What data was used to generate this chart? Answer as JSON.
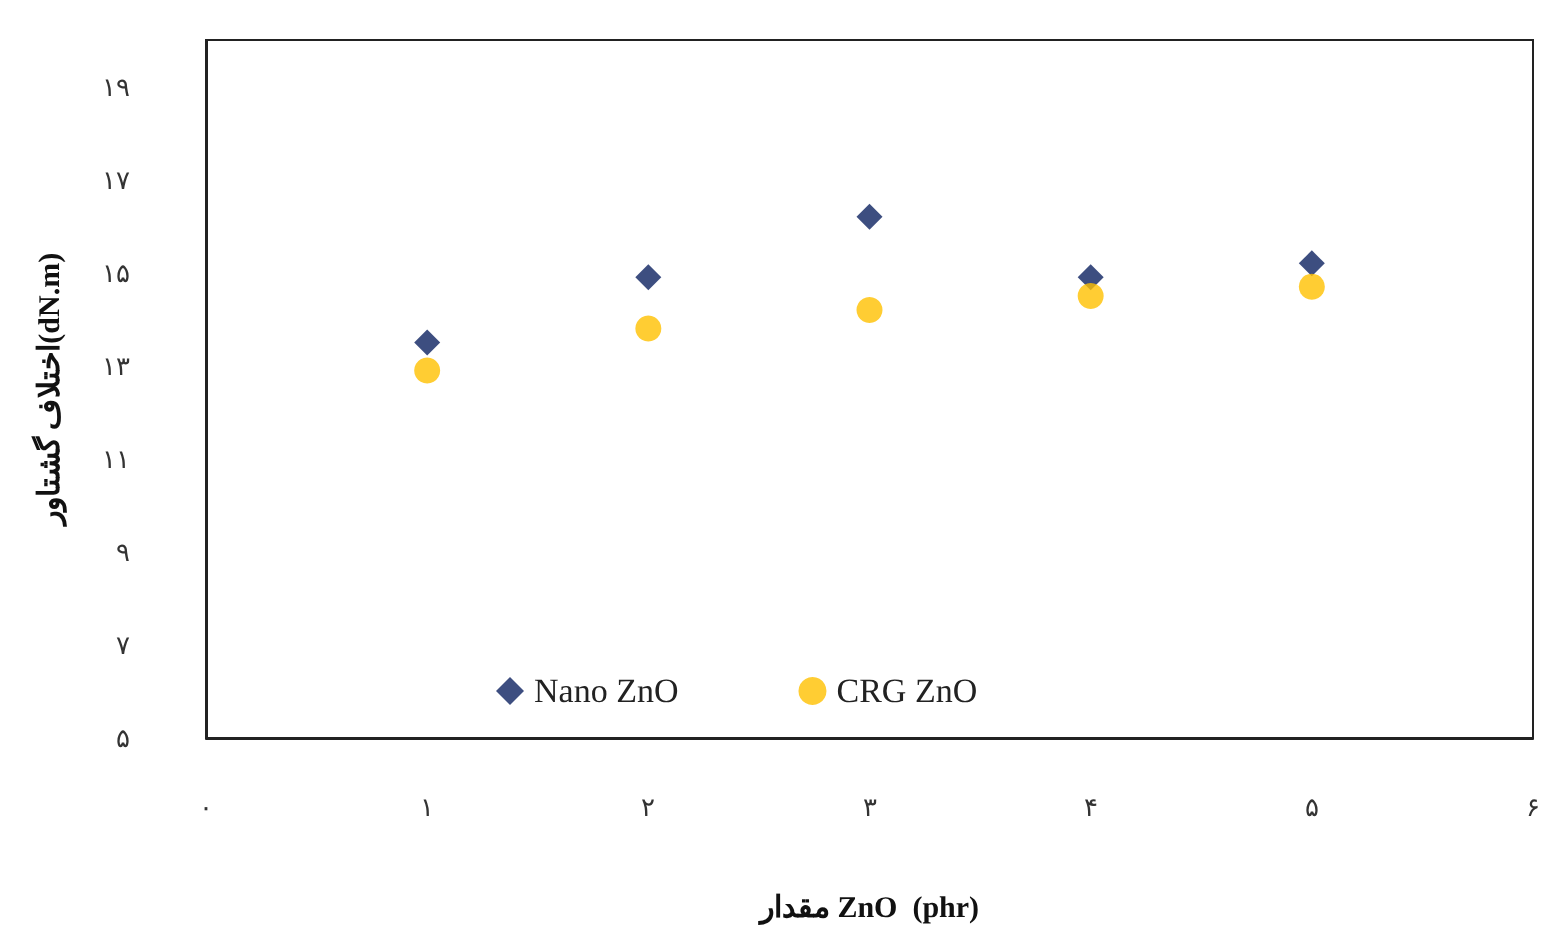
{
  "chart_data": {
    "type": "scatter",
    "xlabel": "مقدار ZnO  (phr)",
    "ylabel": "اختلاف گشتاور(dN.m)",
    "x": [
      1,
      2,
      3,
      4,
      5
    ],
    "series": [
      {
        "name": "Nano ZnO",
        "color": "#0d2260",
        "marker": "diamond",
        "values": [
          13.5,
          14.9,
          16.2,
          14.9,
          15.2
        ]
      },
      {
        "name": "CRG ZnO",
        "color": "#ffc000",
        "marker": "circle",
        "values": [
          12.9,
          13.8,
          14.2,
          14.5,
          14.7
        ]
      }
    ],
    "xlim": [
      0,
      6
    ],
    "xticks": [
      {
        "value": 0,
        "label": "۰"
      },
      {
        "value": 1,
        "label": "۱"
      },
      {
        "value": 2,
        "label": "۲"
      },
      {
        "value": 3,
        "label": "۳"
      },
      {
        "value": 4,
        "label": "۴"
      },
      {
        "value": 5,
        "label": "۵"
      },
      {
        "value": 6,
        "label": "۶"
      }
    ],
    "ylim": [
      5,
      20
    ],
    "yticks": [
      {
        "value": 5,
        "label": "۵"
      },
      {
        "value": 7,
        "label": "۷"
      },
      {
        "value": 9,
        "label": "۹"
      },
      {
        "value": 11,
        "label": "۱۱"
      },
      {
        "value": 13,
        "label": "۱۳"
      },
      {
        "value": 15,
        "label": "۱۵"
      },
      {
        "value": 17,
        "label": "۱۷"
      },
      {
        "value": 19,
        "label": "۱۹"
      }
    ],
    "grid": false,
    "legend": "bottom"
  }
}
